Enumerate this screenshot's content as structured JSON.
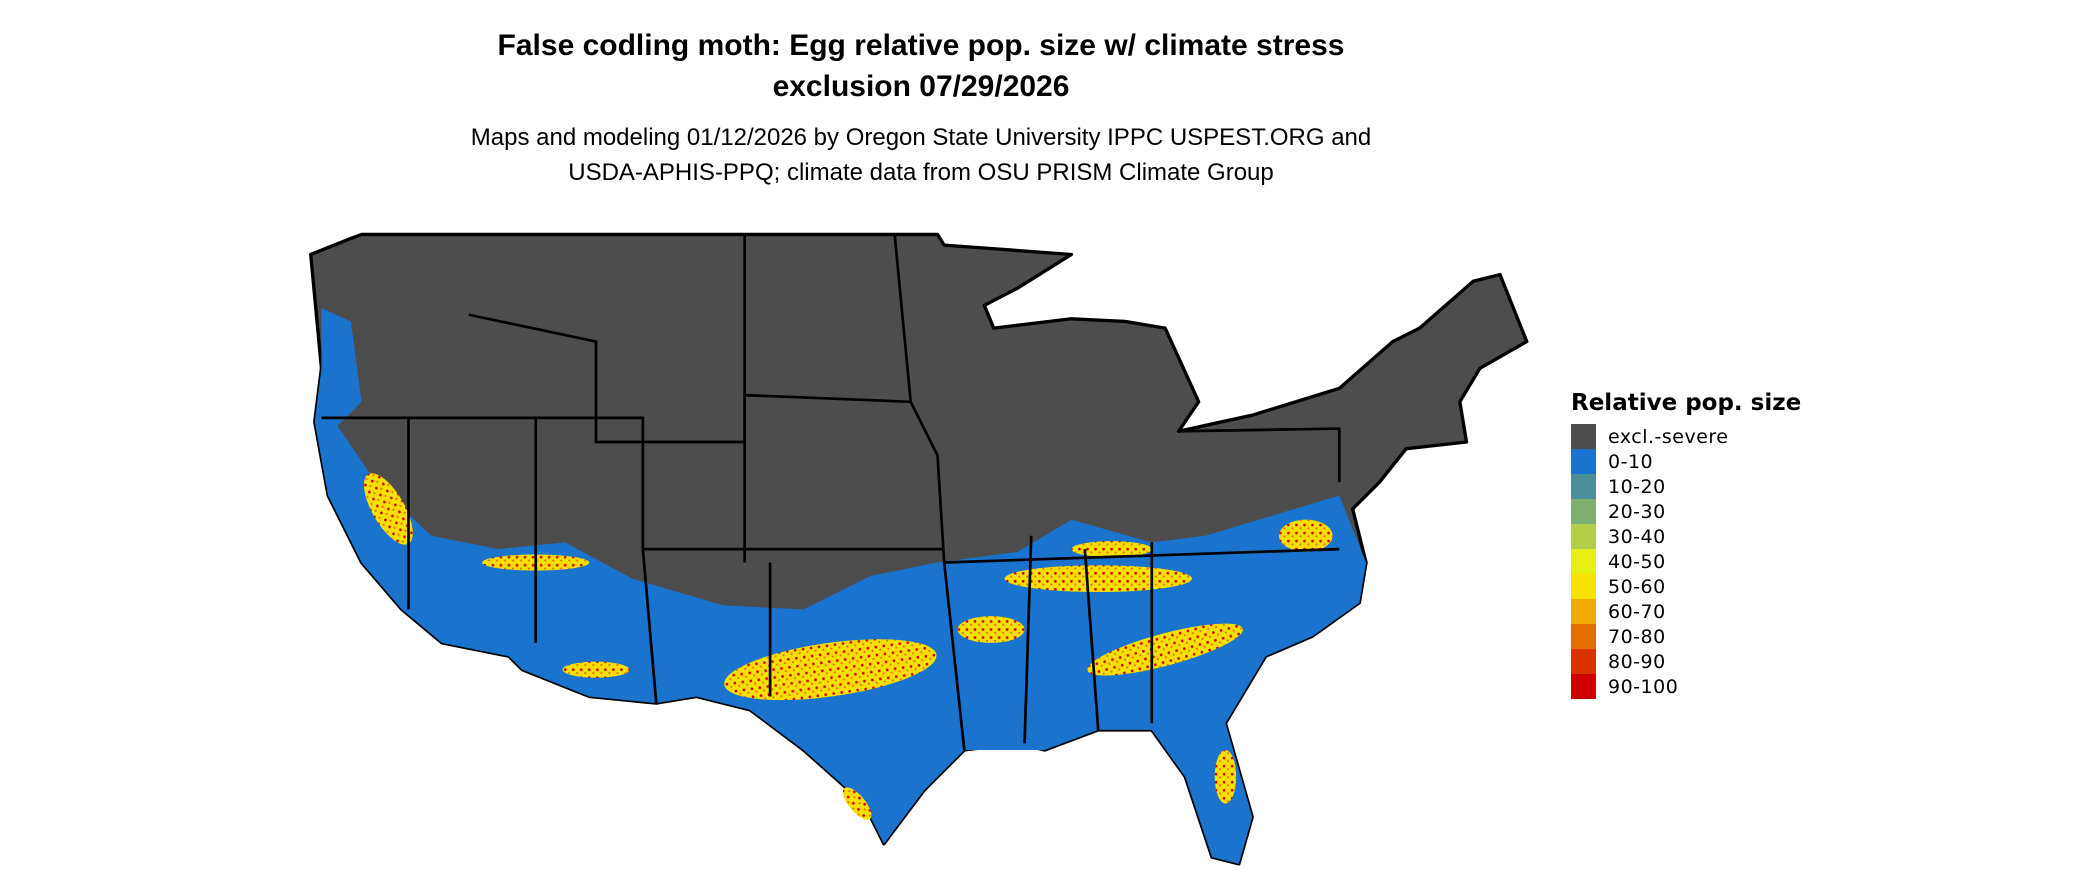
{
  "header": {
    "title_line1": "False codling moth: Egg relative pop. size w/ climate stress",
    "title_line2": "exclusion 07/29/2026",
    "subtitle_line1": "Maps and modeling 01/12/2026 by Oregon State University IPPC USPEST.ORG and",
    "subtitle_line2": "USDA-APHIS-PPQ; climate data from OSU PRISM Climate Group"
  },
  "map": {
    "region": "Contiguous United States",
    "colors": {
      "excluded": "#4d4d4d",
      "low": "#1a73cc",
      "mid": "#f5e000",
      "high": "#d40000",
      "border": "#000000"
    }
  },
  "legend": {
    "title": "Relative pop. size",
    "items": [
      {
        "label": "excl.-severe",
        "color": "#4d4d4d"
      },
      {
        "label": "0-10",
        "color": "#1a73cc"
      },
      {
        "label": "10-20",
        "color": "#4a8f9a"
      },
      {
        "label": "20-30",
        "color": "#7eae72"
      },
      {
        "label": "30-40",
        "color": "#b2cf45"
      },
      {
        "label": "40-50",
        "color": "#e5ef14"
      },
      {
        "label": "50-60",
        "color": "#f8e000"
      },
      {
        "label": "60-70",
        "color": "#efa900"
      },
      {
        "label": "70-80",
        "color": "#e57000"
      },
      {
        "label": "80-90",
        "color": "#da3300"
      },
      {
        "label": "90-100",
        "color": "#cf0000"
      }
    ]
  }
}
